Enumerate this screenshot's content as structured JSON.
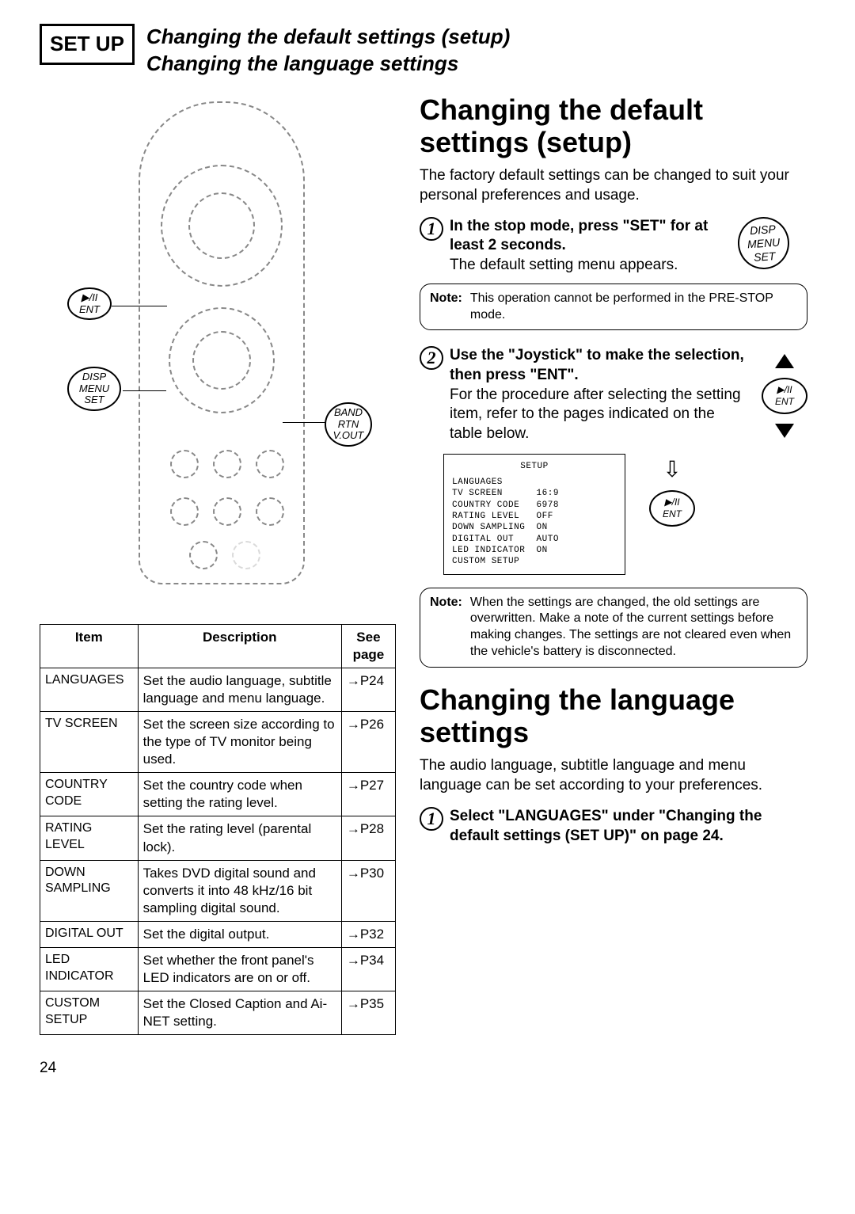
{
  "header": {
    "box_label": "SET UP",
    "title_line1": "Changing the default settings (setup)",
    "title_line2": "Changing the language settings"
  },
  "remote_labels": {
    "ent": "▶/II\nENT",
    "set": "DISP\nMENU\nSET",
    "band": "BAND\nRTN\nV.OUT"
  },
  "table": {
    "headers": [
      "Item",
      "Description",
      "See page"
    ],
    "rows": [
      {
        "item": "LANGUAGES",
        "desc": "Set the audio language, subtitle language and menu language.",
        "page": "→P24"
      },
      {
        "item": "TV SCREEN",
        "desc": "Set the screen size according to the type of TV monitor being used.",
        "page": "→P26"
      },
      {
        "item": "COUNTRY CODE",
        "desc": "Set the country code when setting the rating level.",
        "page": "→P27"
      },
      {
        "item": "RATING LEVEL",
        "desc": "Set the rating level (parental lock).",
        "page": "→P28"
      },
      {
        "item": "DOWN SAMPLING",
        "desc": "Takes DVD digital sound and converts it into 48 kHz/16 bit sampling digital sound.",
        "page": "→P30"
      },
      {
        "item": "DIGITAL OUT",
        "desc": "Set the digital output.",
        "page": "→P32"
      },
      {
        "item": "LED INDICATOR",
        "desc": "Set whether the front panel's LED indicators are on or off.",
        "page": "→P34"
      },
      {
        "item": "CUSTOM SETUP",
        "desc": "Set the Closed Caption and Ai-NET setting.",
        "page": "→P35"
      }
    ]
  },
  "section1": {
    "title": "Changing the default settings (setup)",
    "intro": "The factory default settings can be changed to suit your personal preferences and usage.",
    "step1_title": "In the stop mode, press \"SET\" for at least 2 seconds.",
    "step1_text": "The default setting menu appears.",
    "step1_icon": "DISP\nMENU\nSET",
    "note1": "This operation cannot be performed in the PRE-STOP mode.",
    "step2_title": "Use the \"Joystick\" to make the selection, then press \"ENT\".",
    "step2_text": "For the procedure after selecting the setting item, refer to the pages indicated on the table below.",
    "step2_ent": "▶/II\nENT",
    "setup_screen": {
      "title": "SETUP",
      "lines": [
        "LANGUAGES",
        "TV SCREEN      16:9",
        "COUNTRY CODE   6978",
        "RATING LEVEL   OFF",
        "DOWN SAMPLING  ON",
        "DIGITAL OUT    AUTO",
        "LED INDICATOR  ON",
        "CUSTOM SETUP"
      ]
    },
    "note2": "When the settings are changed, the old settings are overwritten. Make a note of the current settings before making changes. The settings are not cleared even when the vehicle's battery is disconnected."
  },
  "section2": {
    "title": "Changing the language settings",
    "intro": "The audio language, subtitle language and menu language can be set according to your preferences.",
    "step1_title": "Select \"LANGUAGES\" under \"Changing the default settings (SET UP)\" on page 24."
  },
  "page_number": "24",
  "note_label": "Note:"
}
